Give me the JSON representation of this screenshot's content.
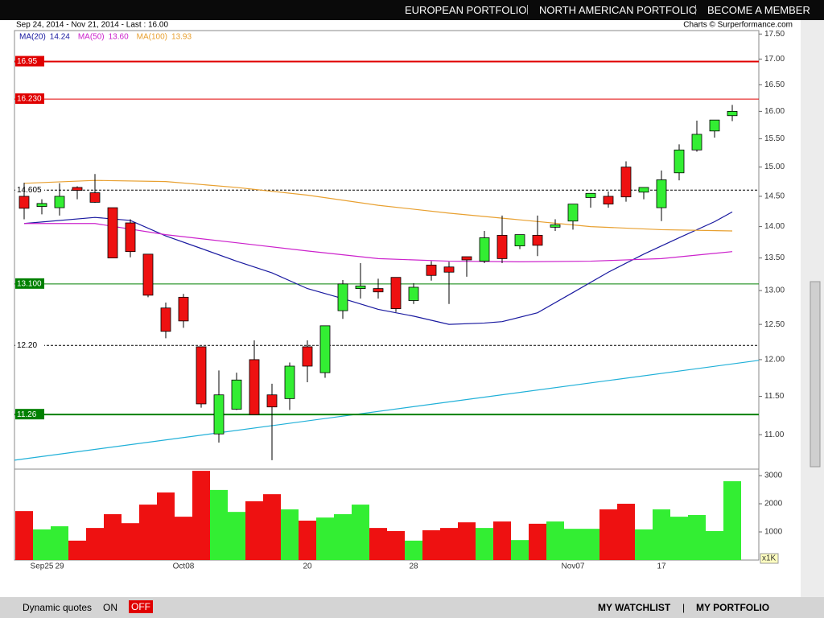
{
  "header": {
    "nav": [
      "EUROPEAN PORTFOLIO",
      "NORTH AMERICAN PORTFOLIO",
      "BECOME A MEMBER"
    ]
  },
  "chart_data": [
    {
      "type": "candlestick",
      "subtitle": "Sep 24, 2014 - Nov 21, 2014 - Last : 16.00",
      "credit": "Charts © Surperformance.com",
      "log": true,
      "ylim": [
        10.57,
        17.57
      ],
      "yticks": [
        {
          "value": 11,
          "label": "11.00"
        },
        {
          "value": 11.5,
          "label": "11.50"
        },
        {
          "value": 12,
          "label": "12.00"
        },
        {
          "value": 12.5,
          "label": "12.50"
        },
        {
          "value": 13,
          "label": "13.00"
        },
        {
          "value": 13.5,
          "label": "13.50"
        },
        {
          "value": 14,
          "label": "14.00"
        },
        {
          "value": 14.5,
          "label": "14.50"
        },
        {
          "value": 15,
          "label": "15.00"
        },
        {
          "value": 15.5,
          "label": "15.50"
        },
        {
          "value": 16,
          "label": "16.00"
        },
        {
          "value": 16.5,
          "label": "16.50"
        },
        {
          "value": 17,
          "label": "17.00"
        },
        {
          "value": 17.5,
          "label": "17.50"
        }
      ],
      "up_color": "#33ee33",
      "down_color": "#ee1111",
      "open": [
        14.5,
        14.33,
        14.31,
        14.65,
        14.56,
        14.31,
        14.06,
        13.56,
        12.74,
        12.9,
        12.18,
        11.01,
        11.33,
        12.0,
        11.52,
        11.47,
        12.18,
        11.82,
        12.7,
        13.03,
        13.03,
        13.2,
        12.85,
        13.39,
        13.36,
        13.52,
        13.45,
        13.86,
        13.69,
        13.86,
        13.99,
        14.09,
        14.48,
        14.5,
        15.0,
        14.57,
        14.31,
        14.9,
        15.3,
        15.64,
        15.92
      ],
      "high": [
        14.73,
        14.45,
        14.72,
        14.67,
        14.88,
        14.31,
        14.12,
        13.56,
        12.82,
        12.95,
        12.18,
        11.85,
        11.82,
        12.27,
        11.67,
        11.96,
        12.27,
        12.48,
        13.16,
        13.42,
        13.18,
        13.2,
        13.11,
        13.45,
        13.44,
        13.52,
        13.93,
        14.18,
        13.87,
        14.18,
        14.12,
        14.37,
        14.55,
        14.58,
        15.1,
        14.65,
        14.94,
        15.4,
        15.83,
        15.84,
        16.12
      ],
      "low": [
        14.12,
        14.2,
        14.18,
        14.45,
        14.39,
        13.5,
        13.51,
        12.9,
        12.3,
        12.45,
        11.35,
        10.9,
        11.32,
        11.26,
        10.68,
        11.32,
        11.69,
        11.75,
        12.58,
        12.88,
        12.88,
        12.68,
        12.8,
        13.15,
        12.8,
        13.21,
        13.42,
        13.42,
        13.64,
        13.53,
        13.93,
        13.95,
        14.31,
        14.31,
        14.41,
        14.45,
        14.09,
        14.77,
        15.27,
        15.52,
        15.82
      ],
      "close": [
        14.3,
        14.38,
        14.5,
        14.6,
        14.4,
        13.5,
        13.6,
        12.93,
        12.4,
        12.55,
        11.4,
        11.52,
        11.72,
        11.26,
        11.36,
        11.91,
        11.91,
        12.48,
        13.1,
        13.07,
        12.98,
        12.73,
        13.05,
        13.23,
        13.28,
        13.47,
        13.82,
        13.49,
        13.87,
        13.7,
        14.03,
        14.37,
        14.55,
        14.37,
        14.49,
        14.65,
        14.78,
        15.3,
        15.58,
        15.84,
        16.0
      ],
      "series": [
        {
          "name": "MA(20)",
          "legend_value": "14.24",
          "color": "#1a1aa0",
          "x": [
            0,
            4,
            6,
            8,
            10,
            12,
            14,
            16,
            18,
            20,
            22,
            24,
            26,
            27,
            29,
            31,
            33,
            35,
            37,
            39,
            40
          ],
          "values": [
            14.05,
            14.15,
            14.1,
            13.85,
            13.65,
            13.45,
            13.27,
            13.03,
            12.88,
            12.72,
            12.62,
            12.5,
            12.52,
            12.54,
            12.67,
            12.97,
            13.28,
            13.56,
            13.82,
            14.08,
            14.24
          ]
        },
        {
          "name": "MA(50)",
          "legend_value": "13.60",
          "color": "#cc22cc",
          "x": [
            0,
            4,
            8,
            12,
            16,
            20,
            24,
            28,
            32,
            36,
            40
          ],
          "values": [
            14.05,
            14.05,
            13.87,
            13.74,
            13.61,
            13.49,
            13.45,
            13.44,
            13.45,
            13.49,
            13.6
          ]
        },
        {
          "name": "MA(100)",
          "legend_value": "13.93",
          "color": "#e8a030",
          "x": [
            0,
            4,
            8,
            12,
            16,
            20,
            24,
            28,
            32,
            36,
            40
          ],
          "values": [
            14.72,
            14.77,
            14.75,
            14.65,
            14.52,
            14.35,
            14.22,
            14.11,
            14.0,
            13.95,
            13.93
          ]
        }
      ],
      "levels": [
        {
          "value": 16.95,
          "label": "16.95",
          "color": "#e00000",
          "style": "solid",
          "width": 2
        },
        {
          "value": 16.23,
          "label": "16.230",
          "color": "#e00000",
          "style": "solid",
          "width": 1
        },
        {
          "value": 14.605,
          "label": "14.605",
          "color": "#000000",
          "style": "dashed",
          "width": 1
        },
        {
          "value": 13.1,
          "label": "13.100",
          "color": "#008000",
          "style": "solid",
          "width": 1
        },
        {
          "value": 12.2,
          "label": "12.20",
          "color": "#000000",
          "style": "dashed",
          "width": 1
        },
        {
          "value": 11.26,
          "label": "11.26",
          "color": "#008000",
          "style": "solid",
          "width": 2
        }
      ],
      "trendline": {
        "color": "#20b0d8",
        "x": [
          -0.55,
          41.5
        ],
        "y": [
          10.68,
          11.99
        ]
      }
    },
    {
      "type": "bar",
      "unit_label": "x1K",
      "categories": [
        null,
        "Sep25",
        "29",
        null,
        null,
        null,
        null,
        null,
        null,
        "Oct08",
        null,
        null,
        null,
        null,
        null,
        null,
        "20",
        null,
        null,
        null,
        null,
        null,
        "28",
        null,
        null,
        null,
        null,
        null,
        null,
        null,
        null,
        "Nov07",
        null,
        null,
        null,
        null,
        "17",
        null,
        null,
        null,
        null
      ],
      "values": [
        1740,
        1090,
        1200,
        690,
        1140,
        1630,
        1310,
        1970,
        2400,
        1540,
        3170,
        2490,
        1710,
        2090,
        2340,
        1800,
        1400,
        1510,
        1630,
        1970,
        1140,
        1030,
        690,
        1060,
        1140,
        1340,
        1140,
        1370,
        710,
        1290,
        1370,
        1110,
        1110,
        1800,
        2000,
        1090,
        1800,
        1540,
        1600,
        1030,
        2800
      ],
      "ylim": [
        0,
        3230
      ],
      "yticks": [
        1000,
        2000,
        3000
      ]
    }
  ],
  "footer": {
    "quotes_label": "Dynamic quotes",
    "on": "ON",
    "off": "OFF",
    "links": [
      "MY WATCHLIST",
      "MY PORTFOLIO"
    ]
  }
}
